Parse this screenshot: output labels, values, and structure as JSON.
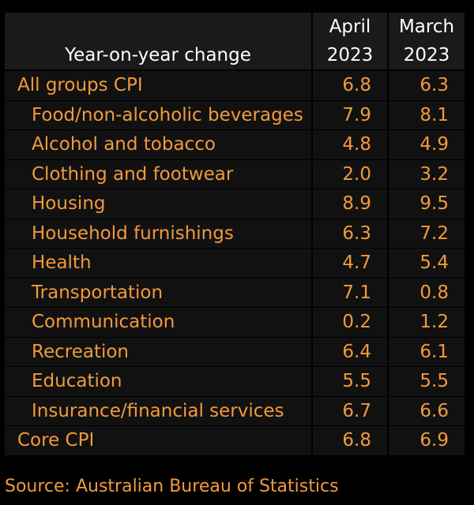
{
  "chart_data": {
    "type": "table",
    "row_header": "Year-on-year change",
    "columns": [
      {
        "month": "April",
        "year": "2023"
      },
      {
        "month": "March",
        "year": "2023"
      }
    ],
    "rows": [
      {
        "label": "All groups CPI",
        "indent": false,
        "april": "6.8",
        "march": "6.3"
      },
      {
        "label": "Food/non-alcoholic beverages",
        "indent": true,
        "april": "7.9",
        "march": "8.1"
      },
      {
        "label": "Alcohol and tobacco",
        "indent": true,
        "april": "4.8",
        "march": "4.9"
      },
      {
        "label": "Clothing and footwear",
        "indent": true,
        "april": "2.0",
        "march": "3.2"
      },
      {
        "label": "Housing",
        "indent": true,
        "april": "8.9",
        "march": "9.5"
      },
      {
        "label": "Household furnishings",
        "indent": true,
        "april": "6.3",
        "march": "7.2"
      },
      {
        "label": "Health",
        "indent": true,
        "april": "4.7",
        "march": "5.4"
      },
      {
        "label": "Transportation",
        "indent": true,
        "april": "7.1",
        "march": "0.8"
      },
      {
        "label": "Communication",
        "indent": true,
        "april": "0.2",
        "march": "1.2"
      },
      {
        "label": "Recreation",
        "indent": true,
        "april": "6.4",
        "march": "6.1"
      },
      {
        "label": "Education",
        "indent": true,
        "april": "5.5",
        "march": "5.5"
      },
      {
        "label": "Insurance/financial services",
        "indent": true,
        "april": "6.7",
        "march": "6.6"
      },
      {
        "label": "Core CPI",
        "indent": false,
        "april": "6.8",
        "march": "6.9"
      }
    ]
  },
  "source": "Source: Australian Bureau of Statistics",
  "colors": {
    "text": "#f29a3b",
    "header_text": "#ffffff",
    "cell_bg": "#111111",
    "header_bg": "#1a1a1a"
  }
}
